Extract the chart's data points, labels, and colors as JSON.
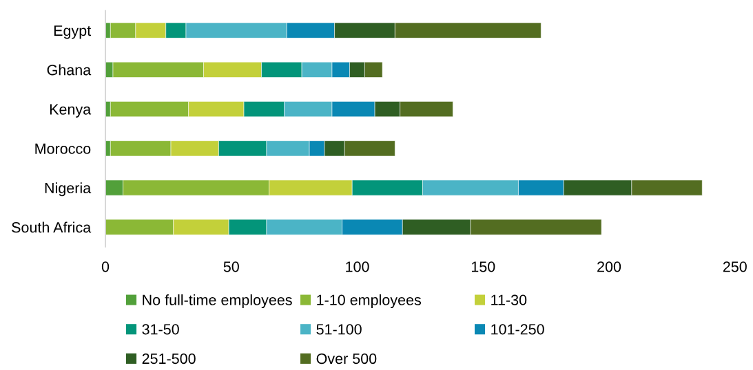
{
  "chart_data": {
    "type": "bar",
    "orientation": "horizontal",
    "stacked": true,
    "categories": [
      "Egypt",
      "Ghana",
      "Kenya",
      "Morocco",
      "Nigeria",
      "South Africa"
    ],
    "series": [
      {
        "name": "No full-time employees",
        "color": "#52a03a",
        "values": [
          2,
          3,
          2,
          2,
          7,
          0
        ]
      },
      {
        "name": "1-10 employees",
        "color": "#8bb836",
        "values": [
          10,
          36,
          31,
          24,
          58,
          27
        ]
      },
      {
        "name": "11-30",
        "color": "#c3d03a",
        "values": [
          12,
          23,
          22,
          19,
          33,
          22
        ]
      },
      {
        "name": "31-50",
        "color": "#03957a",
        "values": [
          8,
          16,
          16,
          19,
          28,
          15
        ]
      },
      {
        "name": "51-100",
        "color": "#4bb4c6",
        "values": [
          40,
          12,
          19,
          17,
          38,
          30
        ]
      },
      {
        "name": "101-250",
        "color": "#0a88b4",
        "values": [
          19,
          7,
          17,
          6,
          18,
          24
        ]
      },
      {
        "name": "251-500",
        "color": "#2f5e23",
        "values": [
          24,
          6,
          10,
          8,
          27,
          27
        ]
      },
      {
        "name": "Over 500",
        "color": "#536d21",
        "values": [
          58,
          7,
          21,
          20,
          28,
          52
        ]
      }
    ],
    "xlim": [
      0,
      250
    ],
    "xticks": [
      0,
      50,
      100,
      150,
      200,
      250
    ],
    "grid": false,
    "legend": "bottom"
  }
}
